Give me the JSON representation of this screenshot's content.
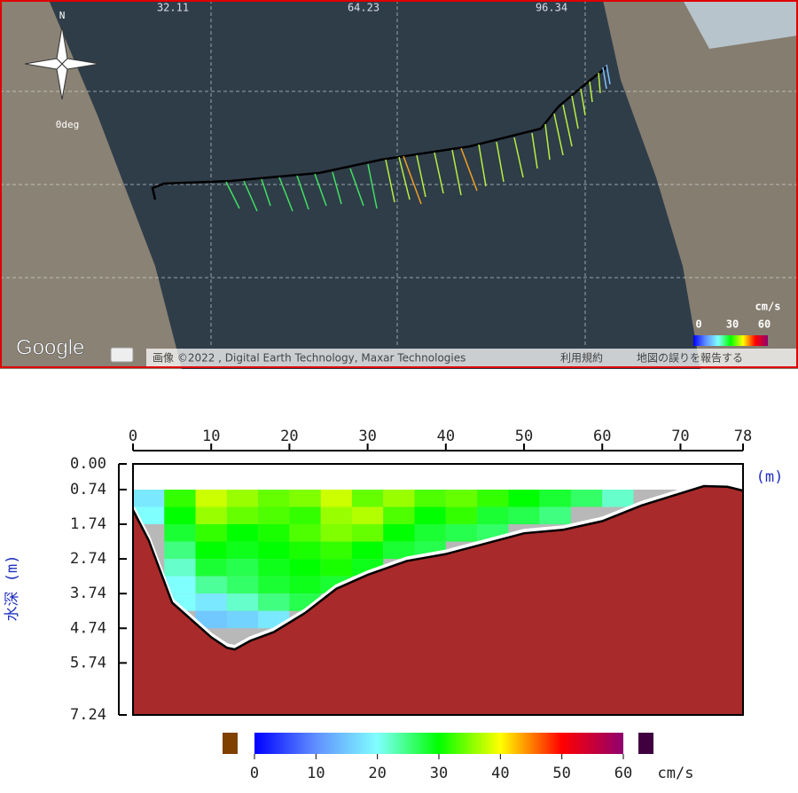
{
  "map": {
    "grid_labels": [
      "32.11",
      "64.23",
      "96.34"
    ],
    "compass": {
      "north": "N",
      "heading": "0deg"
    },
    "legend": {
      "unit": "cm/s",
      "ticks": [
        "0",
        "30",
        "60"
      ]
    },
    "logo": "Google",
    "attribution": "画像 ©2022 , Digital Earth Technology, Maxar Technologies",
    "links": [
      "利用規約",
      "地図の誤りを報告する"
    ]
  },
  "chart_data": {
    "type": "heatmap",
    "x_label": "(m)",
    "y_label": "水深 (m)",
    "xlim": [
      0,
      78
    ],
    "xticks": [
      0,
      10,
      20,
      30,
      40,
      50,
      60,
      70,
      78
    ],
    "ylim": [
      0,
      7.24
    ],
    "yticks": [
      {
        "value": 0,
        "label": "0.00"
      },
      0.74,
      1.74,
      2.74,
      3.74,
      4.74,
      5.74,
      7.24
    ],
    "x_edges": [
      0,
      4,
      8,
      12,
      16,
      20,
      24,
      28,
      32,
      36,
      40,
      44,
      48,
      52,
      56,
      60,
      64
    ],
    "depth_edges": [
      0.74,
      1.24,
      1.74,
      2.24,
      2.74,
      3.24,
      3.74,
      4.24,
      4.74
    ],
    "values": [
      [
        18,
        32,
        38,
        36,
        34,
        35,
        38,
        34,
        36,
        33,
        34,
        32,
        30,
        28,
        26,
        22
      ],
      [
        20,
        30,
        36,
        34,
        33,
        32,
        36,
        37,
        33,
        30,
        32,
        28,
        27,
        25,
        null,
        null
      ],
      [
        null,
        28,
        32,
        30,
        31,
        33,
        35,
        34,
        30,
        28,
        27,
        26,
        null,
        null,
        null,
        null
      ],
      [
        null,
        25,
        30,
        29,
        30,
        31,
        32,
        30,
        28,
        27,
        null,
        null,
        null,
        null,
        null,
        null
      ],
      [
        null,
        22,
        28,
        27,
        29,
        30,
        31,
        29,
        null,
        null,
        null,
        null,
        null,
        null,
        null,
        null
      ],
      [
        null,
        20,
        24,
        26,
        28,
        29,
        28,
        null,
        null,
        null,
        null,
        null,
        null,
        null,
        null,
        null
      ],
      [
        null,
        20,
        18,
        22,
        25,
        27,
        null,
        null,
        null,
        null,
        null,
        null,
        null,
        null,
        null,
        null
      ],
      [
        null,
        null,
        15,
        16,
        18,
        null,
        null,
        null,
        null,
        null,
        null,
        null,
        null,
        null,
        null,
        null
      ]
    ],
    "bed": {
      "x": [
        0,
        2,
        5,
        8,
        10,
        12,
        13,
        15,
        18,
        22,
        26,
        30,
        35,
        40,
        45,
        50,
        55,
        60,
        65,
        70,
        73,
        76,
        78
      ],
      "depth": [
        1.33,
        2.2,
        4.0,
        4.6,
        5.0,
        5.3,
        5.35,
        5.1,
        4.85,
        4.3,
        3.6,
        3.2,
        2.8,
        2.6,
        2.3,
        2.0,
        1.9,
        1.65,
        1.2,
        0.85,
        0.64,
        0.66,
        0.77
      ]
    },
    "colorbar": {
      "ticks": [
        0,
        10,
        20,
        30,
        40,
        50,
        60
      ],
      "unit": "cm/s"
    },
    "colorscale": [
      {
        "value": 0,
        "color": "#0000ff"
      },
      {
        "value": 10,
        "color": "#6090ff"
      },
      {
        "value": 20,
        "color": "#80ffff"
      },
      {
        "value": 30,
        "color": "#00ff00"
      },
      {
        "value": 40,
        "color": "#ffff00"
      },
      {
        "value": 50,
        "color": "#ff0000"
      },
      {
        "value": 60,
        "color": "#900070"
      }
    ]
  }
}
